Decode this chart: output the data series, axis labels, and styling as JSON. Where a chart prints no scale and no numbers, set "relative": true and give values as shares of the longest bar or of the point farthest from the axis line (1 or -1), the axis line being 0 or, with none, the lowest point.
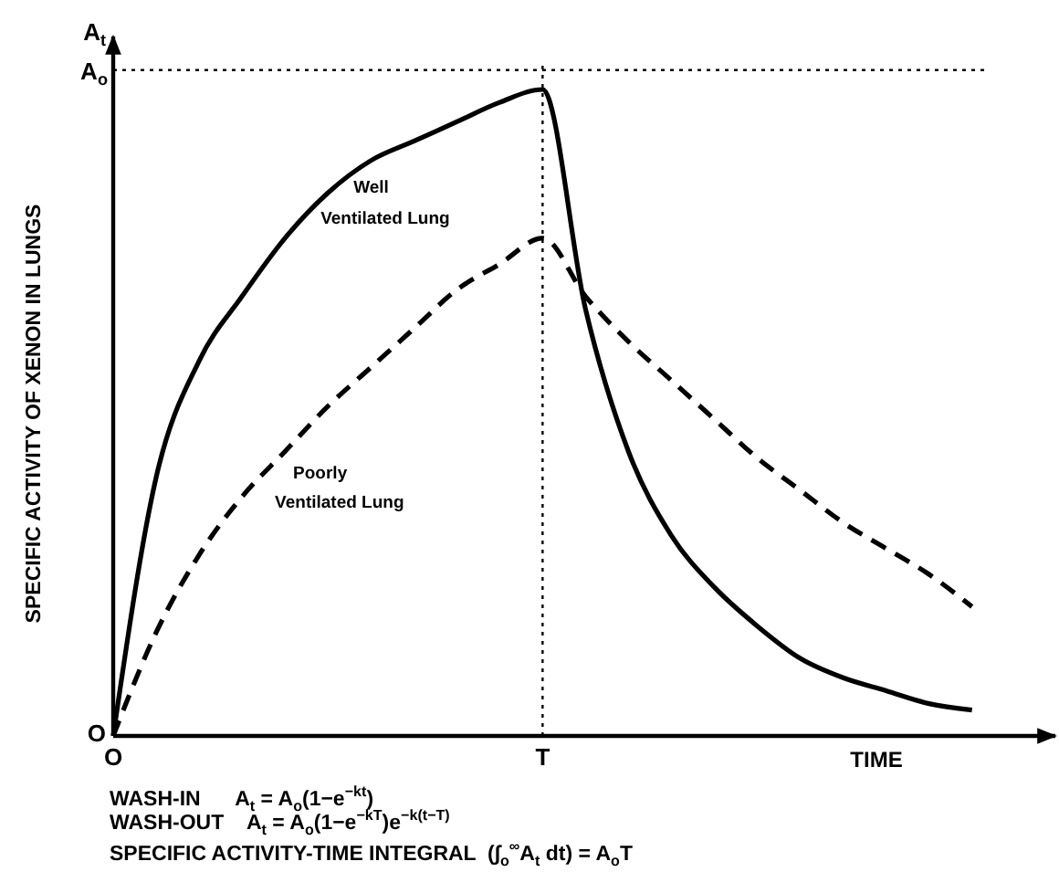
{
  "chart_data": {
    "type": "line",
    "relative": true,
    "ylabel": "SPECIFIC ACTIVITY OF XENON IN LUNGS",
    "xlabel": "TIME",
    "categories": [
      "O",
      null,
      null,
      null,
      null,
      null,
      null,
      null,
      null,
      null,
      "T",
      null,
      null,
      null,
      null,
      null,
      null,
      null,
      null,
      null,
      null
    ],
    "ref_lines": [
      {
        "axis": "y",
        "value": 1.03,
        "label": "A$_{o}$",
        "line_style": "dotted",
        "color": "#000000"
      },
      {
        "axis": "x",
        "value": "T",
        "line_style": "dotted",
        "color": "#000000"
      }
    ],
    "series": [
      {
        "name": "Well Ventilated Lung",
        "color": "#000000",
        "line_style": "solid",
        "values": [
          0,
          0.4,
          0.58,
          0.68,
          0.77,
          0.84,
          0.89,
          0.92,
          0.95,
          0.98,
          1,
          0.66,
          0.44,
          0.31,
          0.23,
          0.17,
          0.12,
          0.09,
          0.07,
          0.05,
          0.04
        ]
      },
      {
        "name": "Poorly Ventilated Lung",
        "color": "#000000",
        "line_style": "dashed",
        "values": [
          0,
          0.16,
          0.28,
          0.37,
          0.44,
          0.51,
          0.57,
          0.63,
          0.69,
          0.73,
          0.77,
          0.68,
          0.61,
          0.55,
          0.49,
          0.43,
          0.38,
          0.33,
          0.29,
          0.25,
          0.2
        ]
      }
    ],
    "annotations": [
      "A$_{t}$",
      "O",
      "WASH-IN      A$_{t}$ = A$_{o}$(1−e$^{−kt}$)",
      "WASH-OUT    A$_{t}$ = A$_{o}$(1−e$^{−kT}$)e$^{−k(t−T)}$",
      "SPECIFIC ACTIVITY-TIME INTEGRAL  (∫$_{o}$$^{∞}$A$_{t}$ dt) = A$_{o}$T"
    ]
  }
}
